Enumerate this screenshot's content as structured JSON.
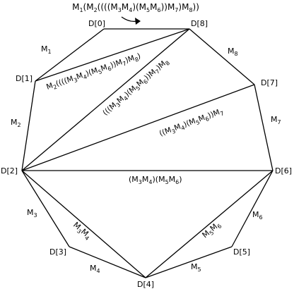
{
  "title": "M1(M2((((M3M4)(M5M6))M7)M8))",
  "vertices": [
    {
      "id": "v0",
      "label": "D[0]"
    },
    {
      "id": "v8",
      "label": "D[8]"
    },
    {
      "id": "v7",
      "label": "D[7]"
    },
    {
      "id": "v6",
      "label": "D[6]"
    },
    {
      "id": "v5",
      "label": "D[5]"
    },
    {
      "id": "v4",
      "label": "D[4]"
    },
    {
      "id": "v3",
      "label": "D[3]"
    },
    {
      "id": "v2",
      "label": "D[2]"
    },
    {
      "id": "v1",
      "label": "D[1]"
    }
  ],
  "side_labels": [
    "M1",
    "M2",
    "M3",
    "M4",
    "M5",
    "M6",
    "M7",
    "M8"
  ],
  "diagonal_labels": [
    "M2((((M3M4)(M5M6))M7)M8)",
    "(((M3M4)(M5M6))M7)M8",
    "((M3M4)(M5M6))M7",
    "(M3M4)(M5M6)",
    "M3M4",
    "M5M6"
  ]
}
